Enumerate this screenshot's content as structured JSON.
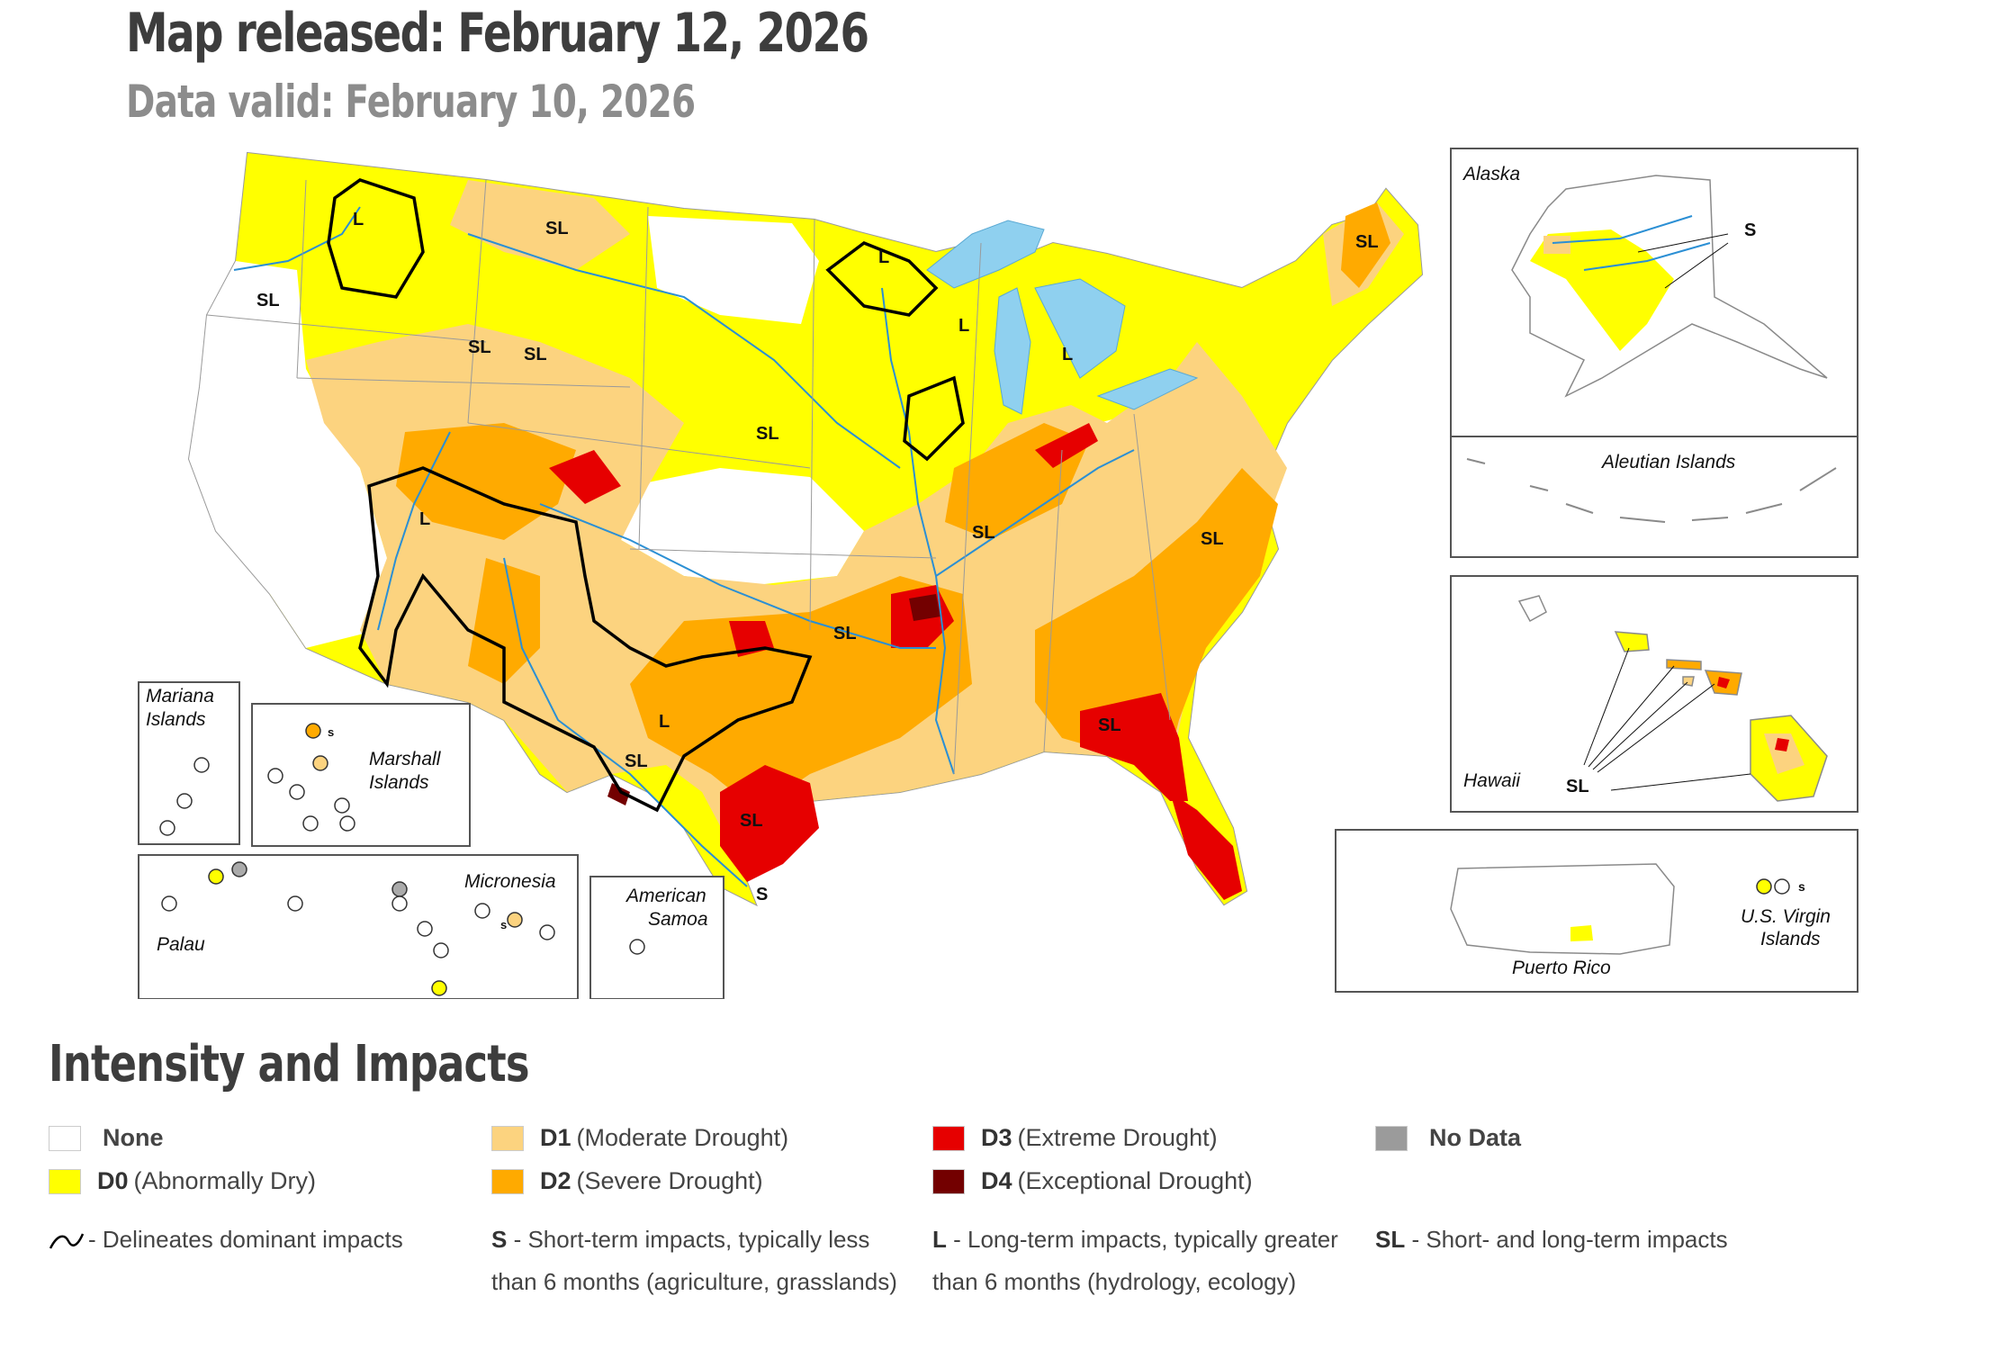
{
  "header": {
    "released": "Map released: February 12, 2026",
    "valid": "Data valid: February 10, 2026"
  },
  "map": {
    "impact_labels": [
      "SL",
      "L",
      "SL",
      "SL",
      "SL",
      "L",
      "L",
      "L",
      "SL",
      "SL",
      "L",
      "SL",
      "SL",
      "SL",
      "L",
      "SL",
      "SL",
      "SL",
      "S"
    ],
    "insets": {
      "alaska": "Alaska",
      "alaska_impact": "S",
      "aleutian": "Aleutian Islands",
      "hawaii": "Hawaii",
      "hawaii_impact": "SL",
      "puerto_rico": "Puerto Rico",
      "virgin_line1": "U.S. Virgin",
      "virgin_line2": "Islands",
      "virgin_s": "s",
      "mariana_line1": "Mariana",
      "mariana_line2": "Islands",
      "marshall_line1": "Marshall",
      "marshall_line2": "Islands",
      "marshall_s": "s",
      "micronesia": "Micronesia",
      "micronesia_s": "s",
      "palau": "Palau",
      "samoa_line1": "American",
      "samoa_line2": "Samoa"
    }
  },
  "colors": {
    "none": "#ffffff",
    "d0": "#ffff00",
    "d1": "#fcd37f",
    "d2": "#ffaa00",
    "d3": "#e60000",
    "d4": "#730000",
    "nodata": "#9b9b9b",
    "water": "#8fd0ef",
    "river": "#2b8fd4"
  },
  "legend": {
    "title": "Intensity and Impacts",
    "categories": [
      {
        "code": "",
        "label": "None"
      },
      {
        "code": "D0",
        "label": "(Abnormally Dry)"
      },
      {
        "code": "D1",
        "label": "(Moderate Drought)"
      },
      {
        "code": "D2",
        "label": "(Severe Drought)"
      },
      {
        "code": "D3",
        "label": "(Extreme Drought)"
      },
      {
        "code": "D4",
        "label": "(Exceptional Drought)"
      },
      {
        "code": "",
        "label": "No Data"
      }
    ],
    "impacts": [
      {
        "code": "",
        "text": "- Delineates dominant impacts"
      },
      {
        "code": "S",
        "text": " - Short-term impacts, typically less than 6 months (agriculture, grasslands)"
      },
      {
        "code": "L",
        "text": " - Long-term impacts, typically greater than 6 months (hydrology, ecology)"
      },
      {
        "code": "SL",
        "text": " - Short- and long-term impacts"
      }
    ]
  }
}
